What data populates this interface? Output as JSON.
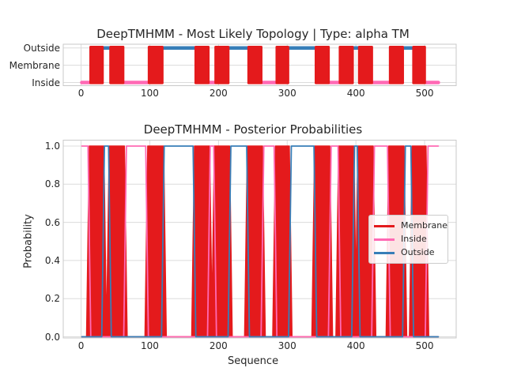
{
  "figure": {
    "background": "#ffffff"
  },
  "colors": {
    "membrane": "#e41a1c",
    "inside": "#ff69b4",
    "outside": "#377eb8",
    "grid": "#dcdcdc",
    "spine": "#c9c9c9",
    "text": "#262626"
  },
  "chart_data": [
    {
      "type": "area",
      "name": "topology",
      "title": "DeepTMHMM - Most Likely Topology | Type: alpha TM",
      "xlabel": "",
      "ylabel": "",
      "x_ticks": [
        0,
        100,
        200,
        300,
        400,
        500
      ],
      "y_categories": [
        "Outside",
        "Membrane",
        "Inside"
      ],
      "xlim": [
        -26,
        546
      ],
      "sequence_start": 1,
      "sequence_end": 520,
      "grid": true,
      "segments": [
        {
          "start": 1,
          "end": 12,
          "label": "inside"
        },
        {
          "start": 12,
          "end": 33,
          "label": "membrane"
        },
        {
          "start": 33,
          "end": 41,
          "label": "outside"
        },
        {
          "start": 41,
          "end": 63,
          "label": "membrane"
        },
        {
          "start": 63,
          "end": 97,
          "label": "inside"
        },
        {
          "start": 97,
          "end": 120,
          "label": "membrane"
        },
        {
          "start": 120,
          "end": 165,
          "label": "outside"
        },
        {
          "start": 165,
          "end": 187,
          "label": "membrane"
        },
        {
          "start": 187,
          "end": 194,
          "label": "inside"
        },
        {
          "start": 194,
          "end": 216,
          "label": "membrane"
        },
        {
          "start": 216,
          "end": 242,
          "label": "outside"
        },
        {
          "start": 242,
          "end": 264,
          "label": "membrane"
        },
        {
          "start": 264,
          "end": 283,
          "label": "inside"
        },
        {
          "start": 283,
          "end": 303,
          "label": "membrane"
        },
        {
          "start": 303,
          "end": 340,
          "label": "outside"
        },
        {
          "start": 340,
          "end": 362,
          "label": "membrane"
        },
        {
          "start": 362,
          "end": 375,
          "label": "inside"
        },
        {
          "start": 375,
          "end": 397,
          "label": "membrane"
        },
        {
          "start": 397,
          "end": 403,
          "label": "outside"
        },
        {
          "start": 403,
          "end": 425,
          "label": "membrane"
        },
        {
          "start": 425,
          "end": 448,
          "label": "inside"
        },
        {
          "start": 448,
          "end": 470,
          "label": "membrane"
        },
        {
          "start": 470,
          "end": 482,
          "label": "outside"
        },
        {
          "start": 482,
          "end": 502,
          "label": "membrane"
        },
        {
          "start": 502,
          "end": 520,
          "label": "inside"
        }
      ]
    },
    {
      "type": "line",
      "name": "posterior",
      "title": "DeepTMHMM - Posterior Probabilities",
      "xlabel": "Sequence",
      "ylabel": "Probability",
      "x_ticks": [
        0,
        100,
        200,
        300,
        400,
        500
      ],
      "y_ticks": [
        "0.0",
        "0.2",
        "0.4",
        "0.6",
        "0.8",
        "1.0"
      ],
      "xlim": [
        -26,
        546
      ],
      "ylim": [
        0,
        1.05
      ],
      "grid": true,
      "legend_position": "center right",
      "ramp": 4,
      "series": [
        {
          "name": "Membrane",
          "color_key": "membrane",
          "style": "filled",
          "high_intervals": [
            [
              12,
              33
            ],
            [
              41,
              63
            ],
            [
              97,
              120
            ],
            [
              165,
              187
            ],
            [
              194,
              216
            ],
            [
              242,
              264
            ],
            [
              283,
              303
            ],
            [
              340,
              362
            ],
            [
              375,
              397
            ],
            [
              403,
              425
            ],
            [
              448,
              470
            ],
            [
              482,
              502
            ]
          ]
        },
        {
          "name": "Inside",
          "color_key": "inside",
          "style": "line",
          "high_intervals": [
            [
              1,
              10
            ],
            [
              66,
              94
            ],
            [
              188,
              193
            ],
            [
              266,
              281
            ],
            [
              364,
              374
            ],
            [
              427,
              446
            ],
            [
              505,
              520
            ]
          ]
        },
        {
          "name": "Outside",
          "color_key": "outside",
          "style": "line",
          "high_intervals": [
            [
              34,
              40
            ],
            [
              121,
              163
            ],
            [
              218,
              241
            ],
            [
              306,
              339
            ],
            [
              398,
              402
            ],
            [
              472,
              480
            ]
          ]
        }
      ],
      "legend": [
        {
          "label": "Membrane",
          "color_key": "membrane"
        },
        {
          "label": "Inside",
          "color_key": "inside"
        },
        {
          "label": "Outside",
          "color_key": "outside"
        }
      ]
    }
  ]
}
